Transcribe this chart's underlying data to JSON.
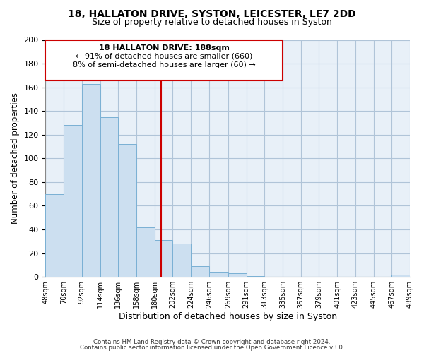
{
  "title": "18, HALLATON DRIVE, SYSTON, LEICESTER, LE7 2DD",
  "subtitle": "Size of property relative to detached houses in Syston",
  "xlabel": "Distribution of detached houses by size in Syston",
  "ylabel": "Number of detached properties",
  "bar_color": "#ccdff0",
  "bar_edgecolor": "#7ab0d4",
  "background_color": "#ffffff",
  "plot_bg_color": "#e8f0f8",
  "grid_color": "#b0c4d8",
  "vline_x": 188,
  "vline_color": "#cc0000",
  "annotation_title": "18 HALLATON DRIVE: 188sqm",
  "annotation_line1": "← 91% of detached houses are smaller (660)",
  "annotation_line2": "8% of semi-detached houses are larger (60) →",
  "annotation_box_color": "#ffffff",
  "annotation_box_edgecolor": "#cc0000",
  "footer1": "Contains HM Land Registry data © Crown copyright and database right 2024.",
  "footer2": "Contains public sector information licensed under the Open Government Licence v3.0.",
  "bins": [
    48,
    70,
    92,
    114,
    136,
    158,
    180,
    202,
    224,
    246,
    269,
    291,
    313,
    335,
    357,
    379,
    401,
    423,
    445,
    467,
    489
  ],
  "counts": [
    70,
    128,
    163,
    135,
    112,
    42,
    31,
    28,
    9,
    4,
    3,
    1,
    0,
    0,
    0,
    0,
    0,
    0,
    0,
    2
  ],
  "ylim": [
    0,
    200
  ],
  "yticks": [
    0,
    20,
    40,
    60,
    80,
    100,
    120,
    140,
    160,
    180,
    200
  ]
}
